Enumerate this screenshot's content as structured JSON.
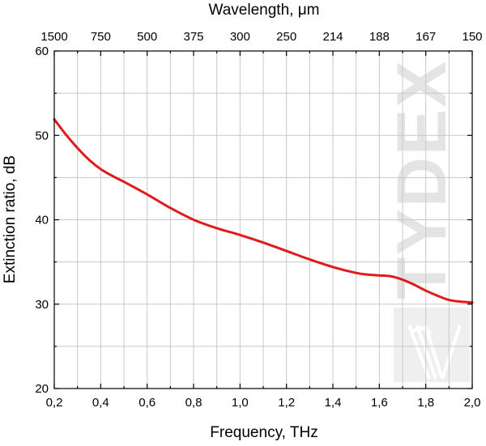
{
  "chart_data": {
    "type": "line",
    "xlabel": "Frequency, THz",
    "ylabel": "Extinction ratio, dB",
    "top_axis_label": "Wavelength, μm",
    "xlim": [
      0.2,
      2.0
    ],
    "ylim": [
      20,
      60
    ],
    "x_ticks": [
      "0,2",
      "0,4",
      "0,6",
      "0,8",
      "1,0",
      "1,2",
      "1,4",
      "1,6",
      "1,8",
      "2,0"
    ],
    "x_tick_values": [
      0.2,
      0.4,
      0.6,
      0.8,
      1.0,
      1.2,
      1.4,
      1.6,
      1.8,
      2.0
    ],
    "y_ticks": [
      "20",
      "30",
      "40",
      "50",
      "60"
    ],
    "y_tick_values": [
      20,
      30,
      40,
      50,
      60
    ],
    "top_ticks": [
      "1500",
      "750",
      "500",
      "375",
      "300",
      "250",
      "214",
      "188",
      "167",
      "150"
    ],
    "grid": true,
    "series": [
      {
        "color": "#e01b1b",
        "x": [
          0.2,
          0.25,
          0.3,
          0.35,
          0.4,
          0.45,
          0.5,
          0.6,
          0.7,
          0.8,
          0.9,
          1.0,
          1.1,
          1.2,
          1.3,
          1.4,
          1.5,
          1.55,
          1.6,
          1.65,
          1.7,
          1.75,
          1.8,
          1.85,
          1.9,
          1.95,
          2.0
        ],
        "values": [
          51.9,
          50.1,
          48.5,
          47.1,
          46.0,
          45.2,
          44.5,
          43.0,
          41.4,
          40.0,
          39.0,
          38.2,
          37.3,
          36.3,
          35.3,
          34.4,
          33.7,
          33.5,
          33.4,
          33.3,
          32.9,
          32.3,
          31.6,
          31.0,
          30.5,
          30.3,
          30.2
        ]
      }
    ]
  },
  "watermark": {
    "text": "TYDEX"
  }
}
